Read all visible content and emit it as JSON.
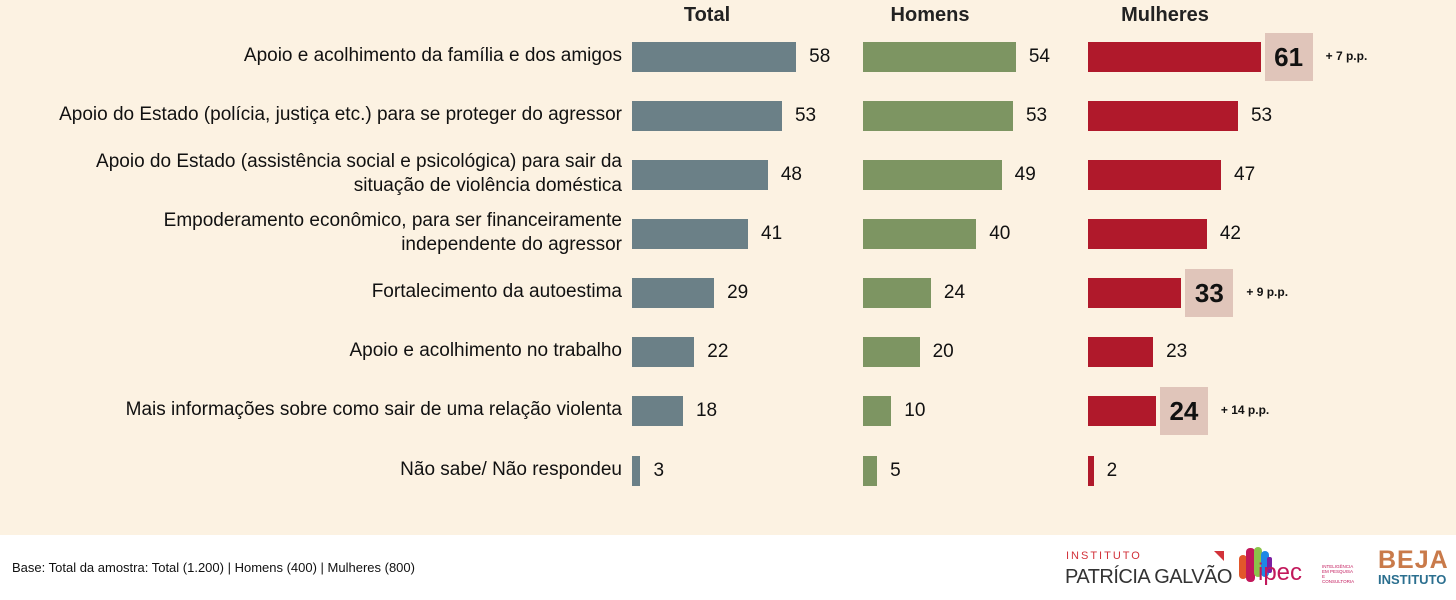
{
  "chart_data": {
    "type": "bar",
    "orientation": "horizontal",
    "categories": [
      [
        "Apoio e acolhimento da família e dos amigos"
      ],
      [
        "Apoio do Estado (polícia, justiça etc.) para se proteger do agressor"
      ],
      [
        "Apoio do Estado (assistência social e psicológica) para sair da",
        "situação de violência doméstica"
      ],
      [
        "Empoderamento econômico, para ser financeiramente",
        "independente do agressor"
      ],
      [
        "Fortalecimento da autoestima"
      ],
      [
        "Apoio e acolhimento no trabalho"
      ],
      [
        "Mais informações sobre como sair de uma relação violenta"
      ],
      [
        "Não sabe/ Não respondeu"
      ]
    ],
    "series": [
      {
        "name": "Total",
        "color": "#6b8087",
        "values": [
          58,
          53,
          48,
          41,
          29,
          22,
          18,
          3
        ]
      },
      {
        "name": "Homens",
        "color": "#7d9562",
        "values": [
          54,
          53,
          49,
          40,
          24,
          20,
          10,
          5
        ]
      },
      {
        "name": "Mulheres",
        "color": "#b0192b",
        "values": [
          61,
          53,
          47,
          42,
          33,
          23,
          24,
          2
        ]
      }
    ],
    "highlights": [
      {
        "series": "Mulheres",
        "category_index": 0,
        "value": 61,
        "delta": "+ 7 p.p."
      },
      {
        "series": "Mulheres",
        "category_index": 4,
        "value": 33,
        "delta": "+ 9 p.p."
      },
      {
        "series": "Mulheres",
        "category_index": 6,
        "value": 24,
        "delta": "+ 14 p.p."
      }
    ],
    "highlight_color": "#e0c5ba",
    "background_color": "#fcf2e2",
    "xlim": [
      0,
      100
    ],
    "title": "",
    "xlabel": "",
    "ylabel": "",
    "grid": false,
    "legend": "none"
  },
  "footnote": "Base: Total da amostra: Total (1.200) | Homens (400) | Mulheres (800)",
  "logos": {
    "patricia_galvao": {
      "line1": "INSTITUTO",
      "line2": "PATRÍCIA GALVÃO"
    },
    "ipec": {
      "name": "ipec",
      "tagline": [
        "INTELIGÊNCIA",
        "EM PESQUISA",
        "E CONSULTORIA"
      ]
    },
    "beja": {
      "name": "BEJA",
      "sub": "INSTITUTO"
    }
  }
}
